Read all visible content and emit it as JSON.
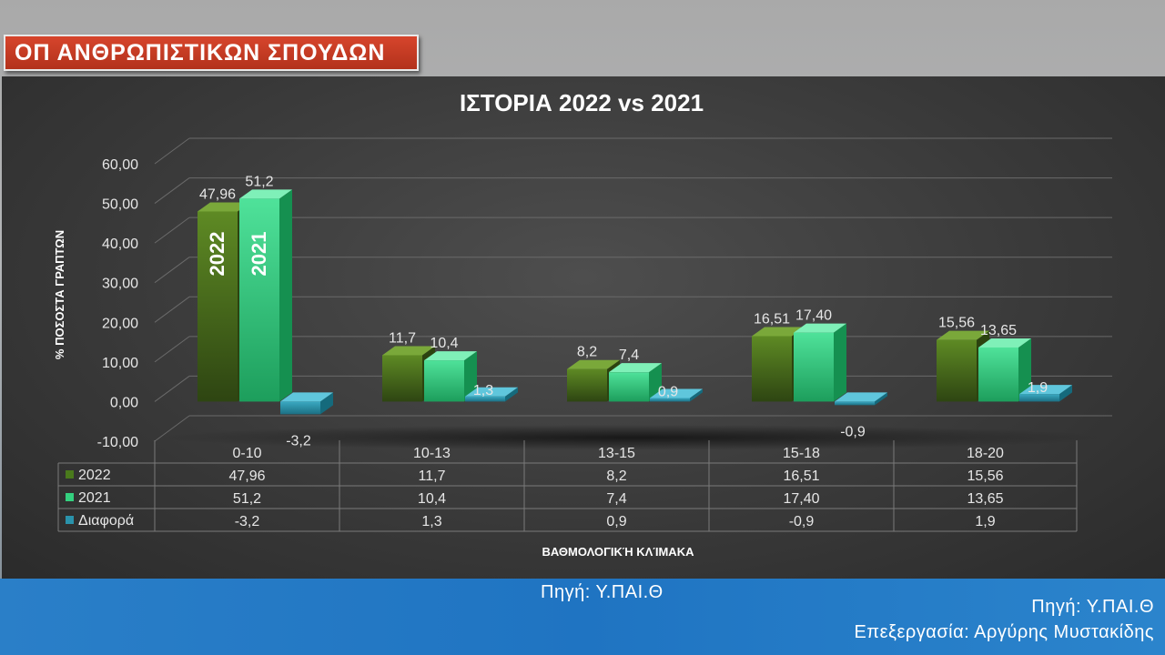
{
  "banner": {
    "title": "ΟΠ ΑΝΘΡΩΠΙΣΤΙΚΩΝ ΣΠΟΥΔΩΝ"
  },
  "chart_data": {
    "type": "bar",
    "title": "ΙΣΤΟΡΙΑ 2022 vs 2021",
    "ylabel": "% ΠΟΣΟΣΤΑ ΓΡΑΠΤΩΝ",
    "xlabel": "ΒΑΘΜΟΛΟΓΙΚΉ ΚΛΊΜΑΚΑ",
    "ylim": [
      -10,
      60
    ],
    "yticks": [
      "60,00",
      "50,00",
      "40,00",
      "30,00",
      "20,00",
      "10,00",
      "0,00",
      "-10,00"
    ],
    "categories": [
      "0-10",
      "10-13",
      "13-15",
      "15-18",
      "18-20"
    ],
    "grid": true,
    "legend": "data-table",
    "series": [
      {
        "name": "2022",
        "values": [
          47.96,
          11.7,
          8.2,
          16.51,
          15.56
        ],
        "labels": [
          "47,96",
          "11,7",
          "8,2",
          "16,51",
          "15,56"
        ],
        "color": "#4a6b1f"
      },
      {
        "name": "2021",
        "values": [
          51.2,
          10.4,
          7.4,
          17.4,
          13.65
        ],
        "labels": [
          "51,2",
          "10,4",
          "7,4",
          "17,40",
          "13,65"
        ],
        "color": "#2fc47a"
      },
      {
        "name": "Διαφορά",
        "values": [
          -3.2,
          1.3,
          0.9,
          -0.9,
          1.9
        ],
        "labels": [
          "-3,2",
          "1,3",
          "0,9",
          "-0,9",
          "1,9"
        ],
        "color": "#2a8fa6"
      }
    ],
    "bar_annotations": [
      "2022",
      "2021"
    ]
  },
  "footer": {
    "source_center": "Πηγή: Υ.ΠΑΙ.Θ",
    "source_right": "Πηγή: Υ.ΠΑΙ.Θ",
    "processing": "Επεξεργασία: Αργύρης Μυστακίδης"
  }
}
